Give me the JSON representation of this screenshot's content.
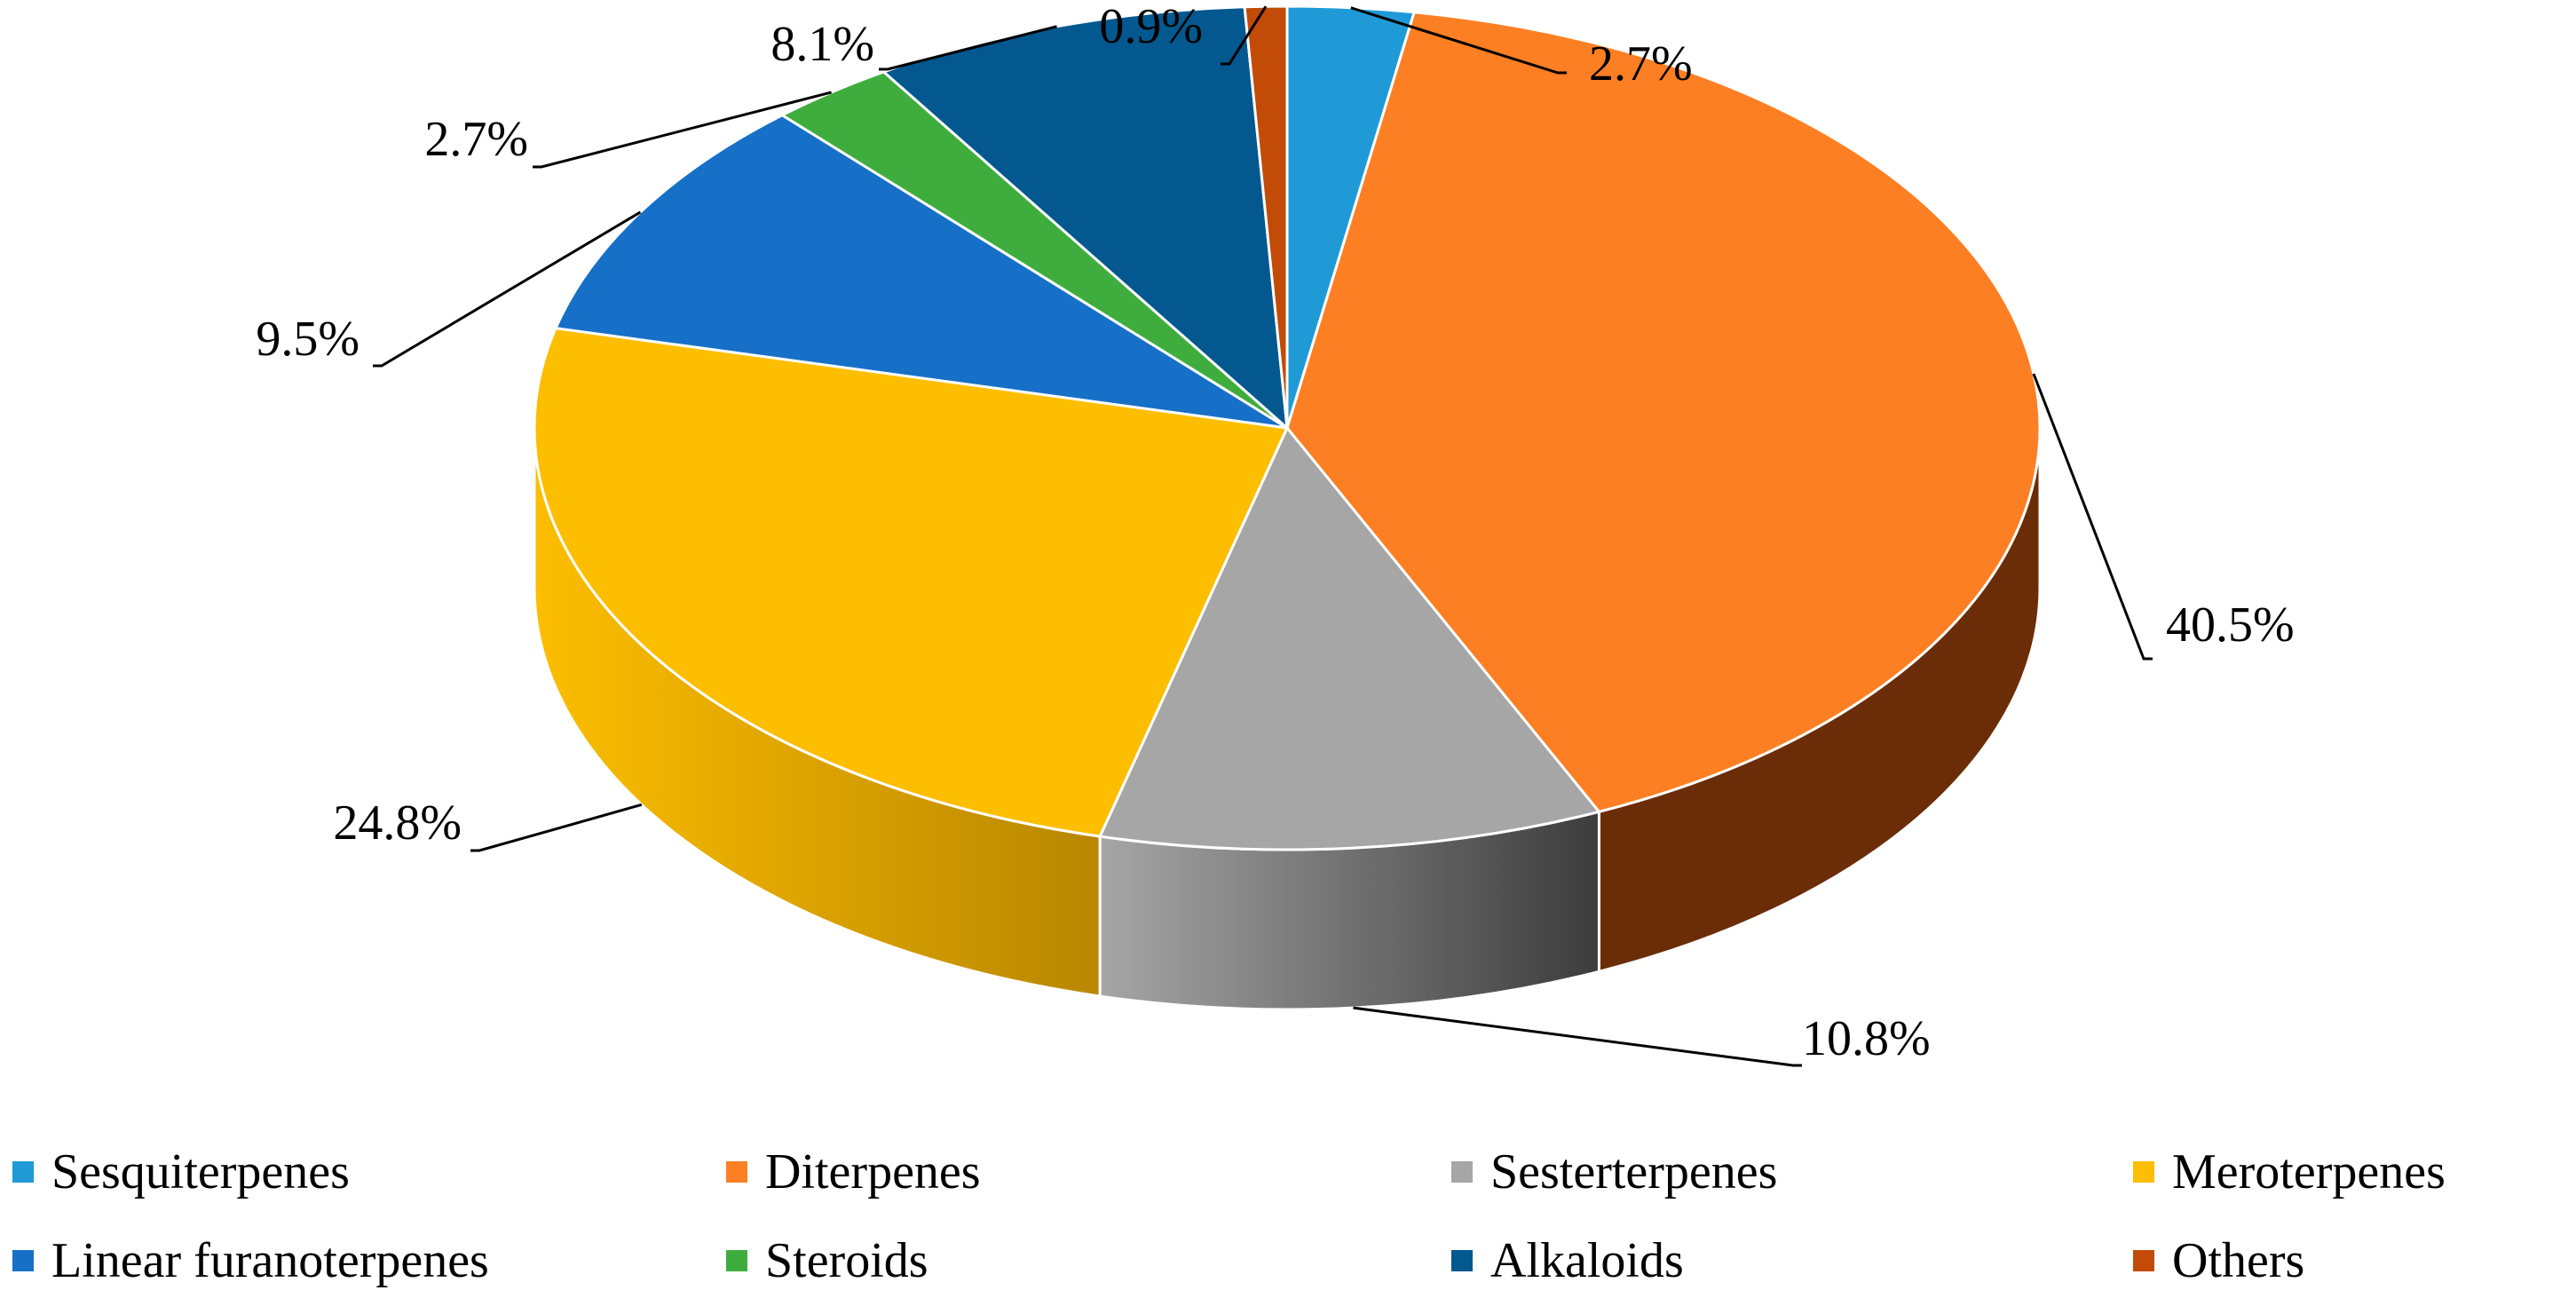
{
  "chart_data": {
    "type": "pie",
    "title": "",
    "series": [
      {
        "label": "Sesquiterpenes",
        "value": 2.7,
        "display": "2.7%",
        "color": "#1f9ad6",
        "side_dark": "#0d5e86"
      },
      {
        "label": "Diterpenes",
        "value": 40.5,
        "display": "40.5%",
        "color": "#fd7f23",
        "side_dark": "#6b2d07"
      },
      {
        "label": "Sesterterpenes",
        "value": 10.8,
        "display": "10.8%",
        "color": "#a6a6a6",
        "side_dark": "#3c3c3c"
      },
      {
        "label": "Meroterpenes",
        "value": 24.8,
        "display": "24.8%",
        "color": "#fdbe00",
        "side_dark": "#b88700"
      },
      {
        "label": "Linear furanoterpenes",
        "value": 9.5,
        "display": "9.5%",
        "color": "#1670c8",
        "side_dark": "#0b3b6b"
      },
      {
        "label": "Steroids",
        "value": 2.7,
        "display": "2.7%",
        "color": "#3ead3d",
        "side_dark": "#1d5a1c"
      },
      {
        "label": "Alkaloids",
        "value": 8.1,
        "display": "8.1%",
        "color": "#03588f",
        "side_dark": "#012d4b"
      },
      {
        "label": "Others",
        "value": 0.9,
        "display": "0.9%",
        "color": "#c24b08",
        "side_dark": "#5a2203"
      }
    ],
    "legend_position": "bottom",
    "three_d": true
  }
}
